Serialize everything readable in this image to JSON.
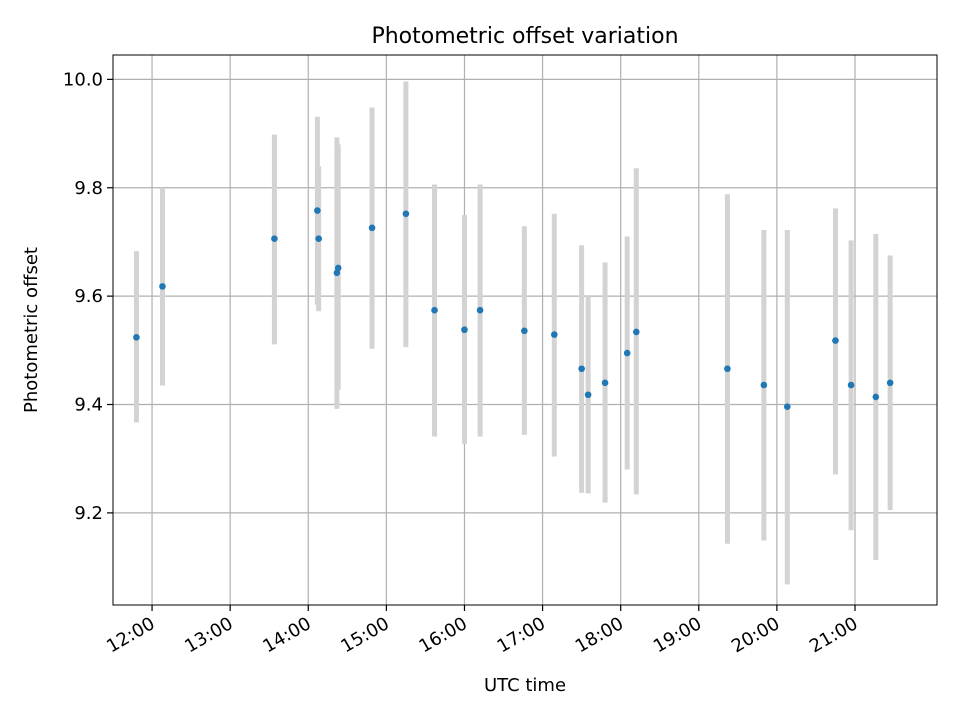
{
  "chart_data": {
    "type": "scatter",
    "title": "Photometric offset variation",
    "xlabel": "UTC time",
    "ylabel": "Photometric offset",
    "x_tick_labels": [
      "12:00",
      "13:00",
      "14:00",
      "15:00",
      "16:00",
      "17:00",
      "18:00",
      "19:00",
      "20:00",
      "21:00"
    ],
    "x_tick_times": [
      "12:00",
      "13:00",
      "14:00",
      "15:00",
      "16:00",
      "17:00",
      "18:00",
      "19:00",
      "20:00",
      "21:00"
    ],
    "y_tick_labels": [
      "9.2",
      "9.4",
      "9.6",
      "9.8",
      "10.0"
    ],
    "y_ticks": [
      9.2,
      9.4,
      9.6,
      9.8,
      10.0
    ],
    "xlim": [
      "11:30",
      "22:03"
    ],
    "ylim": [
      9.03,
      10.045
    ],
    "grid": true,
    "legend": "none",
    "colors": {
      "marker": "#1f77b4",
      "errorbar": "#d3d3d3",
      "grid": "#b0b0b0",
      "axes": "#000000"
    },
    "points": [
      {
        "x": "11:48",
        "y": 9.524,
        "lo": 9.367,
        "hi": 9.683
      },
      {
        "x": "12:08",
        "y": 9.618,
        "lo": 9.435,
        "hi": 9.8
      },
      {
        "x": "13:34",
        "y": 9.706,
        "lo": 9.511,
        "hi": 9.898
      },
      {
        "x": "14:07",
        "y": 9.758,
        "lo": 9.584,
        "hi": 9.931
      },
      {
        "x": "14:08",
        "y": 9.706,
        "lo": 9.572,
        "hi": 9.84
      },
      {
        "x": "14:22",
        "y": 9.643,
        "lo": 9.392,
        "hi": 9.893
      },
      {
        "x": "14:23",
        "y": 9.652,
        "lo": 9.427,
        "hi": 9.88
      },
      {
        "x": "14:49",
        "y": 9.726,
        "lo": 9.503,
        "hi": 9.948
      },
      {
        "x": "15:15",
        "y": 9.752,
        "lo": 9.506,
        "hi": 9.996
      },
      {
        "x": "15:37",
        "y": 9.574,
        "lo": 9.341,
        "hi": 9.806
      },
      {
        "x": "16:00",
        "y": 9.538,
        "lo": 9.327,
        "hi": 9.75
      },
      {
        "x": "16:12",
        "y": 9.574,
        "lo": 9.341,
        "hi": 9.806
      },
      {
        "x": "16:46",
        "y": 9.536,
        "lo": 9.344,
        "hi": 9.729
      },
      {
        "x": "17:09",
        "y": 9.529,
        "lo": 9.304,
        "hi": 9.752
      },
      {
        "x": "17:30",
        "y": 9.466,
        "lo": 9.237,
        "hi": 9.694
      },
      {
        "x": "17:35",
        "y": 9.418,
        "lo": 9.236,
        "hi": 9.6
      },
      {
        "x": "17:48",
        "y": 9.44,
        "lo": 9.219,
        "hi": 9.662
      },
      {
        "x": "18:05",
        "y": 9.495,
        "lo": 9.28,
        "hi": 9.71
      },
      {
        "x": "18:12",
        "y": 9.534,
        "lo": 9.234,
        "hi": 9.836
      },
      {
        "x": "19:22",
        "y": 9.466,
        "lo": 9.143,
        "hi": 9.788
      },
      {
        "x": "19:50",
        "y": 9.436,
        "lo": 9.149,
        "hi": 9.722
      },
      {
        "x": "20:08",
        "y": 9.396,
        "lo": 9.068,
        "hi": 9.722
      },
      {
        "x": "20:45",
        "y": 9.518,
        "lo": 9.271,
        "hi": 9.762
      },
      {
        "x": "20:57",
        "y": 9.436,
        "lo": 9.168,
        "hi": 9.703
      },
      {
        "x": "21:16",
        "y": 9.414,
        "lo": 9.113,
        "hi": 9.715
      },
      {
        "x": "21:27",
        "y": 9.44,
        "lo": 9.205,
        "hi": 9.675
      }
    ]
  }
}
